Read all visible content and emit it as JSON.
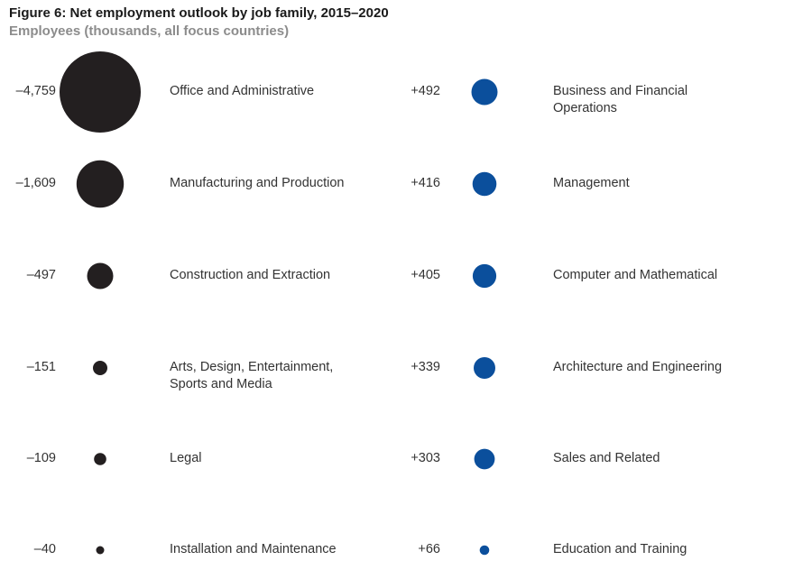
{
  "chart_data": {
    "type": "bubble",
    "title": "Figure 6: Net employment outlook by job family, 2015–2020",
    "subtitle": "Employees (thousands, all focus countries)",
    "colors": {
      "decline": "#231f20",
      "growth": "#0b4f9c"
    },
    "series": [
      {
        "name": "decline",
        "items": [
          {
            "value": -4759,
            "display": "–4,759",
            "label": "Office and Administrative"
          },
          {
            "value": -1609,
            "display": "–1,609",
            "label": "Manufacturing and Production"
          },
          {
            "value": -497,
            "display": "–497",
            "label": "Construction and Extraction"
          },
          {
            "value": -151,
            "display": "–151",
            "label": "Arts, Design, Entertainment, Sports and Media"
          },
          {
            "value": -109,
            "display": "–109",
            "label": "Legal"
          },
          {
            "value": -40,
            "display": "–40",
            "label": "Installation and Maintenance"
          }
        ]
      },
      {
        "name": "growth",
        "items": [
          {
            "value": 492,
            "display": "+492",
            "label": "Business and Financial Operations"
          },
          {
            "value": 416,
            "display": "+416",
            "label": "Management"
          },
          {
            "value": 405,
            "display": "+405",
            "label": "Computer and Mathematical"
          },
          {
            "value": 339,
            "display": "+339",
            "label": "Architecture and Engineering"
          },
          {
            "value": 303,
            "display": "+303",
            "label": "Sales and Related"
          },
          {
            "value": 66,
            "display": "+66",
            "label": "Education and Training"
          }
        ]
      }
    ]
  }
}
